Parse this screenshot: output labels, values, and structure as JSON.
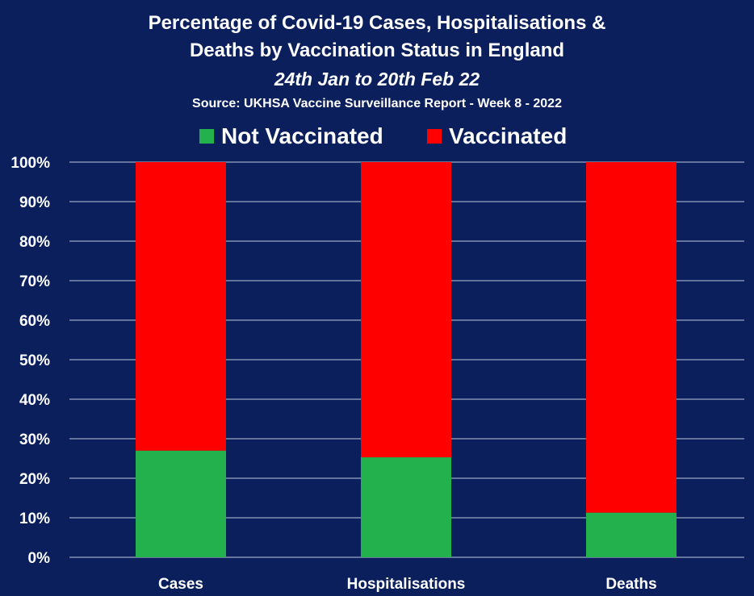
{
  "title": {
    "line1": "Percentage of Covid-19 Cases, Hospitalisations &",
    "line2": "Deaths by Vaccination Status in England",
    "period": "24th Jan to 20th Feb 22",
    "source": "Source: UKHSA Vaccine Surveillance Report - Week 8 - 2022"
  },
  "colors": {
    "background": "#0a1f5c",
    "not_vaccinated": "#22b14c",
    "vaccinated": "#ff0000",
    "grid": "#9aa6c4"
  },
  "chart_data": {
    "type": "bar",
    "stacked": true,
    "categories": [
      "Cases",
      "Hospitalisations",
      "Deaths"
    ],
    "series": [
      {
        "name": "Not Vaccinated",
        "values": [
          27,
          25.3,
          11.3
        ]
      },
      {
        "name": "Vaccinated",
        "values": [
          73,
          74.7,
          88.7
        ]
      }
    ],
    "ylim": [
      0,
      100
    ],
    "yticks": [
      "0%",
      "10%",
      "20%",
      "30%",
      "40%",
      "50%",
      "60%",
      "70%",
      "80%",
      "90%",
      "100%"
    ],
    "grid": true,
    "legend": "top"
  }
}
